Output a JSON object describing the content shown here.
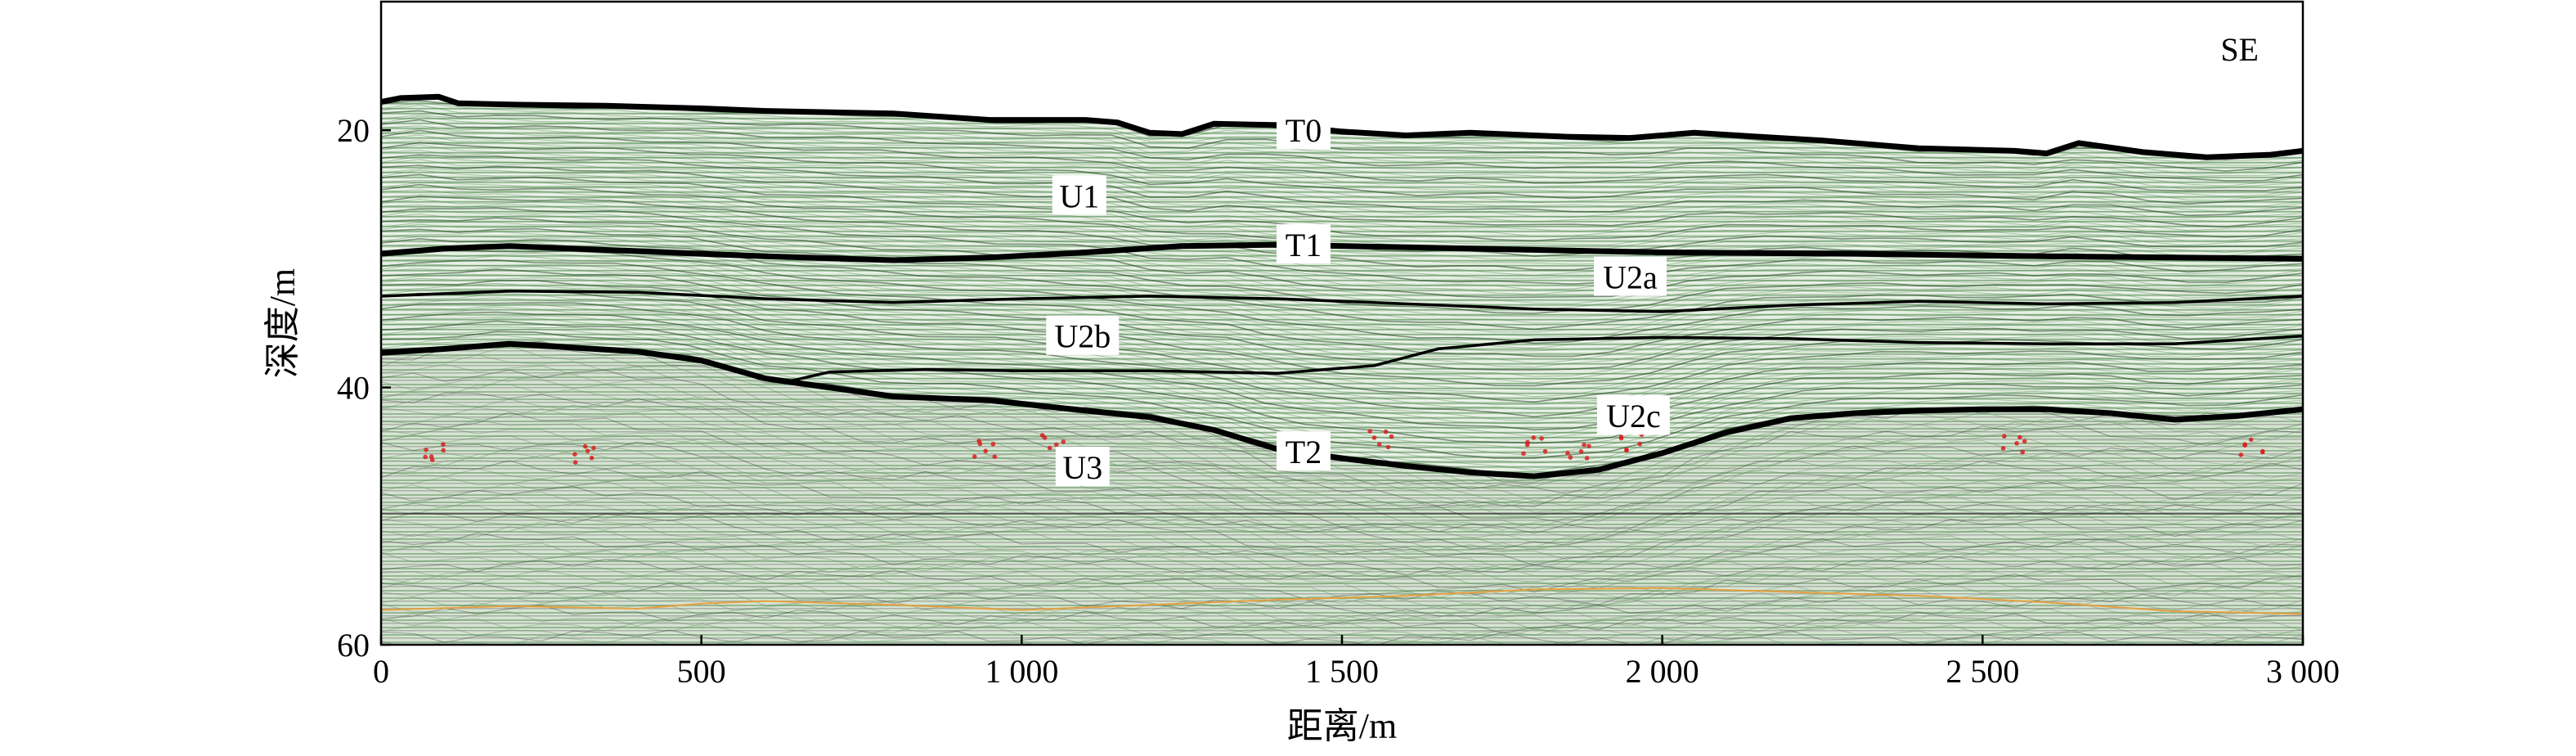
{
  "chart_data": {
    "type": "seismic-section",
    "corner_label": "SE",
    "xlabel": "距离/m",
    "ylabel": "深度/m",
    "xlim": [
      0,
      3000
    ],
    "ylim": [
      60,
      10
    ],
    "x_ticks": [
      0,
      500,
      1000,
      1500,
      2000,
      2500,
      3000
    ],
    "x_tick_labels": [
      "0",
      "500",
      "1 000",
      "1 500",
      "2 000",
      "2 500",
      "3 000"
    ],
    "y_ticks": [
      20,
      40,
      60
    ],
    "y_tick_labels": [
      "20",
      "40",
      "60"
    ],
    "background_color": "#d9e6d6",
    "reflector_color": "#000000",
    "seafloor_multiple_color": "#e6a040",
    "gas_anomaly_color": "#d82020",
    "horizons": [
      {
        "name": "T0",
        "points": [
          [
            0,
            17.8
          ],
          [
            30,
            17.5
          ],
          [
            90,
            17.4
          ],
          [
            120,
            17.9
          ],
          [
            200,
            18.0
          ],
          [
            350,
            18.1
          ],
          [
            500,
            18.3
          ],
          [
            600,
            18.5
          ],
          [
            800,
            18.7
          ],
          [
            950,
            19.2
          ],
          [
            1100,
            19.2
          ],
          [
            1150,
            19.4
          ],
          [
            1200,
            20.2
          ],
          [
            1250,
            20.3
          ],
          [
            1300,
            19.5
          ],
          [
            1400,
            19.6
          ],
          [
            1500,
            20.1
          ],
          [
            1600,
            20.4
          ],
          [
            1700,
            20.2
          ],
          [
            1850,
            20.5
          ],
          [
            1950,
            20.6
          ],
          [
            2050,
            20.2
          ],
          [
            2150,
            20.5
          ],
          [
            2250,
            20.8
          ],
          [
            2400,
            21.4
          ],
          [
            2550,
            21.6
          ],
          [
            2600,
            21.8
          ],
          [
            2650,
            21.0
          ],
          [
            2750,
            21.7
          ],
          [
            2850,
            22.1
          ],
          [
            2950,
            21.9
          ],
          [
            3000,
            21.6
          ]
        ]
      },
      {
        "name": "T1",
        "points": [
          [
            0,
            29.6
          ],
          [
            100,
            29.2
          ],
          [
            200,
            29.0
          ],
          [
            400,
            29.4
          ],
          [
            600,
            29.8
          ],
          [
            800,
            30.1
          ],
          [
            950,
            29.9
          ],
          [
            1100,
            29.5
          ],
          [
            1250,
            29.0
          ],
          [
            1400,
            28.9
          ],
          [
            1600,
            29.1
          ],
          [
            1800,
            29.3
          ],
          [
            2000,
            29.5
          ],
          [
            2300,
            29.6
          ],
          [
            2600,
            29.8
          ],
          [
            2800,
            29.9
          ],
          [
            3000,
            30.0
          ]
        ]
      },
      {
        "name": "U2a-U2b boundary",
        "points": [
          [
            0,
            32.9
          ],
          [
            200,
            32.5
          ],
          [
            400,
            32.6
          ],
          [
            600,
            33.1
          ],
          [
            800,
            33.4
          ],
          [
            1000,
            33.1
          ],
          [
            1200,
            32.9
          ],
          [
            1400,
            33.1
          ],
          [
            1600,
            33.5
          ],
          [
            1800,
            33.9
          ],
          [
            2000,
            34.1
          ],
          [
            2200,
            33.6
          ],
          [
            2400,
            33.3
          ],
          [
            2600,
            33.5
          ],
          [
            2800,
            33.4
          ],
          [
            3000,
            32.9
          ]
        ]
      },
      {
        "name": "U2b-U2c boundary",
        "points": [
          [
            630,
            39.6
          ],
          [
            700,
            38.8
          ],
          [
            850,
            38.6
          ],
          [
            1000,
            38.7
          ],
          [
            1200,
            38.7
          ],
          [
            1400,
            38.9
          ],
          [
            1550,
            38.3
          ],
          [
            1650,
            37.0
          ],
          [
            1800,
            36.3
          ],
          [
            2000,
            36.1
          ],
          [
            2200,
            36.2
          ],
          [
            2400,
            36.5
          ],
          [
            2600,
            36.6
          ],
          [
            2800,
            36.6
          ],
          [
            3000,
            36.0
          ]
        ]
      },
      {
        "name": "T2",
        "points": [
          [
            0,
            37.3
          ],
          [
            100,
            37.0
          ],
          [
            200,
            36.6
          ],
          [
            300,
            36.9
          ],
          [
            400,
            37.2
          ],
          [
            500,
            37.9
          ],
          [
            600,
            39.3
          ],
          [
            700,
            40.0
          ],
          [
            800,
            40.7
          ],
          [
            950,
            41.0
          ],
          [
            1100,
            41.8
          ],
          [
            1200,
            42.3
          ],
          [
            1300,
            43.3
          ],
          [
            1400,
            44.8
          ],
          [
            1500,
            45.5
          ],
          [
            1600,
            46.1
          ],
          [
            1700,
            46.6
          ],
          [
            1800,
            46.9
          ],
          [
            1900,
            46.4
          ],
          [
            2000,
            45.1
          ],
          [
            2100,
            43.5
          ],
          [
            2200,
            42.4
          ],
          [
            2300,
            42.0
          ],
          [
            2400,
            41.8
          ],
          [
            2500,
            41.7
          ],
          [
            2600,
            41.7
          ],
          [
            2700,
            42.0
          ],
          [
            2800,
            42.5
          ],
          [
            2900,
            42.2
          ],
          [
            3000,
            41.7
          ]
        ]
      }
    ],
    "seafloor_multiple": [
      [
        0,
        57.3
      ],
      [
        200,
        57.0
      ],
      [
        400,
        57.2
      ],
      [
        500,
        56.8
      ],
      [
        600,
        56.6
      ],
      [
        800,
        56.9
      ],
      [
        1000,
        57.3
      ],
      [
        1200,
        56.9
      ],
      [
        1400,
        56.5
      ],
      [
        1600,
        56.2
      ],
      [
        1800,
        55.7
      ],
      [
        2000,
        55.6
      ],
      [
        2200,
        55.9
      ],
      [
        2400,
        56.2
      ],
      [
        2600,
        56.7
      ],
      [
        2800,
        57.4
      ],
      [
        3000,
        57.6
      ]
    ],
    "gas_anomalies": [
      {
        "x": 80,
        "y": 45.0
      },
      {
        "x": 320,
        "y": 45.2
      },
      {
        "x": 940,
        "y": 44.8
      },
      {
        "x": 1050,
        "y": 44.2
      },
      {
        "x": 1560,
        "y": 44.0
      },
      {
        "x": 1800,
        "y": 44.5
      },
      {
        "x": 1870,
        "y": 44.9
      },
      {
        "x": 1950,
        "y": 44.3
      },
      {
        "x": 2550,
        "y": 44.4
      },
      {
        "x": 2920,
        "y": 44.6
      }
    ],
    "labels": [
      {
        "text": "T0",
        "x": 1440,
        "y": 20.0
      },
      {
        "text": "T1",
        "x": 1440,
        "y": 28.9
      },
      {
        "text": "T2",
        "x": 1440,
        "y": 45.0
      },
      {
        "text": "U1",
        "x": 1090,
        "y": 25.1
      },
      {
        "text": "U2a",
        "x": 1950,
        "y": 31.4
      },
      {
        "text": "U2b",
        "x": 1095,
        "y": 36.0
      },
      {
        "text": "U2c",
        "x": 1955,
        "y": 42.2
      },
      {
        "text": "U3",
        "x": 1095,
        "y": 46.2
      }
    ]
  }
}
